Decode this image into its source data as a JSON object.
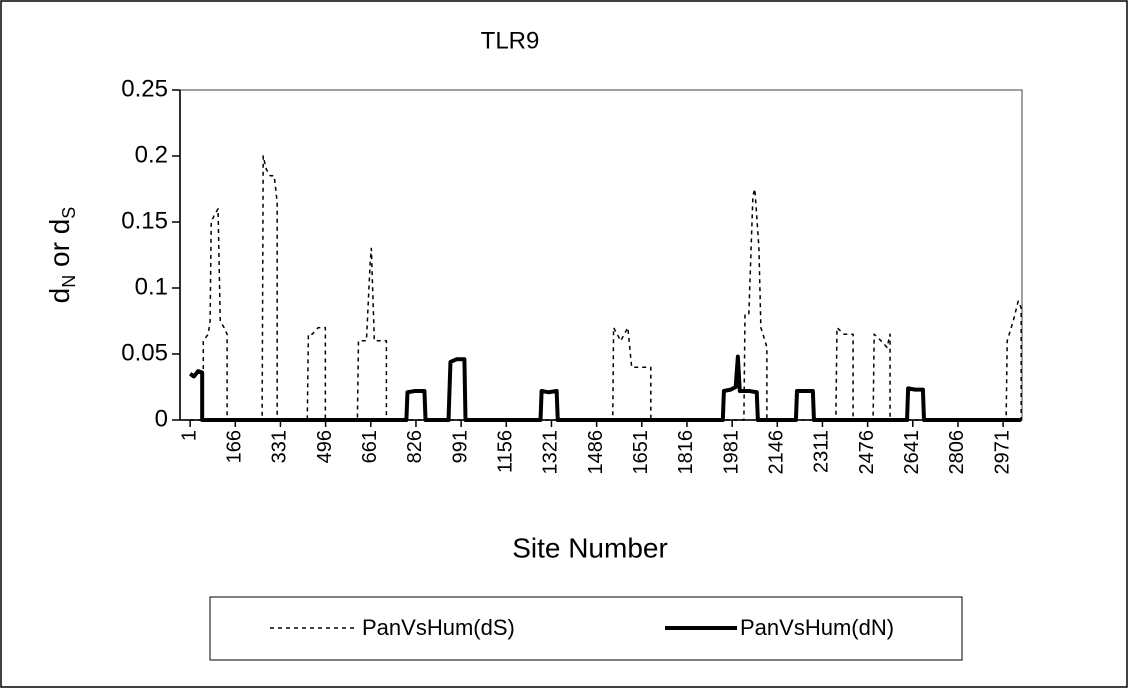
{
  "chart_data": {
    "type": "line",
    "title": "TLR9",
    "y_label_parts": [
      "d",
      "N",
      " or d",
      "S"
    ],
    "x_label": "Site Number",
    "xlim": [
      -36,
      3040
    ],
    "ylim": [
      0,
      0.25
    ],
    "yticks": [
      0,
      0.05,
      0.1,
      0.15,
      0.2,
      0.25
    ],
    "xticks": [
      1,
      166,
      331,
      496,
      661,
      826,
      991,
      1156,
      1321,
      1486,
      1651,
      1816,
      1981,
      2146,
      2311,
      2476,
      2641,
      2806,
      2971
    ],
    "legend": "bottom",
    "series": [
      {
        "name": "PanVsHum(dS)",
        "color": "#000000",
        "dash": "dotted",
        "x": [
          1,
          49,
          49,
          67,
          74,
          78,
          89,
          103,
          111,
          125,
          136,
          136,
          264,
          268,
          279,
          294,
          308,
          319,
          319,
          429,
          433,
          447,
          469,
          495,
          495,
          612,
          616,
          645,
          659,
          663,
          674,
          718,
          718,
          1545,
          1548,
          1574,
          1600,
          1614,
          1647,
          1684,
          1684,
          2024,
          2028,
          2042,
          2057,
          2064,
          2079,
          2086,
          2101,
          2108,
          2108,
          2360,
          2364,
          2390,
          2423,
          2423,
          2496,
          2500,
          2525,
          2547,
          2558,
          2558,
          2982,
          2986,
          3008,
          3026,
          3037,
          3037
        ],
        "values": [
          0,
          0,
          0.06,
          0.065,
          0.075,
          0.15,
          0.155,
          0.16,
          0.075,
          0.07,
          0.065,
          0,
          0,
          0.2,
          0.19,
          0.185,
          0.185,
          0.165,
          0,
          0,
          0.065,
          0.065,
          0.07,
          0.07,
          0,
          0,
          0.06,
          0.06,
          0.12,
          0.13,
          0.06,
          0.06,
          0,
          0,
          0.07,
          0.06,
          0.07,
          0.04,
          0.04,
          0.04,
          0,
          0,
          0.08,
          0.08,
          0.17,
          0.175,
          0.13,
          0.07,
          0.06,
          0.055,
          0,
          0,
          0.07,
          0.065,
          0.065,
          0,
          0,
          0.065,
          0.06,
          0.055,
          0.065,
          0,
          0,
          0.06,
          0.075,
          0.09,
          0.085,
          0
        ]
      },
      {
        "name": "PanVsHum(dN)",
        "color": "#000000",
        "dash": "solid",
        "x": [
          1,
          15,
          30,
          45,
          45,
          791,
          795,
          824,
          857,
          861,
          945,
          952,
          974,
          1003,
          1007,
          1281,
          1285,
          1311,
          1340,
          1344,
          1947,
          1951,
          1976,
          1994,
          2002,
          2009,
          2042,
          2071,
          2075,
          2214,
          2218,
          2247,
          2276,
          2280,
          2620,
          2624,
          2649,
          2678,
          2682,
          3037
        ],
        "values": [
          0.035,
          0.033,
          0.037,
          0.036,
          0,
          0,
          0.021,
          0.022,
          0.022,
          0,
          0,
          0.044,
          0.046,
          0.046,
          0,
          0,
          0.022,
          0.021,
          0.022,
          0,
          0,
          0.022,
          0.023,
          0.025,
          0.048,
          0.022,
          0.022,
          0.021,
          0,
          0,
          0.022,
          0.022,
          0.022,
          0,
          0,
          0.024,
          0.023,
          0.023,
          0,
          0
        ]
      }
    ]
  }
}
